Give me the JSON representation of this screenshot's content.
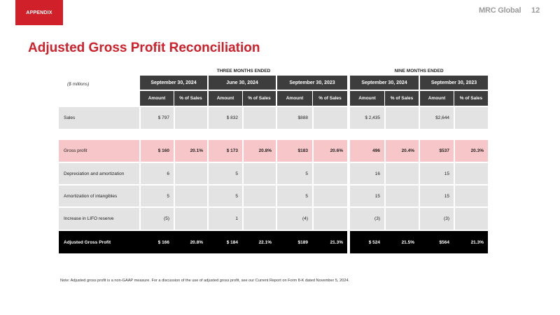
{
  "header": {
    "tag": "APPENDIX",
    "logo": "MRC Global",
    "page": "12"
  },
  "title": "Adjusted Gross Profit Reconciliation",
  "groups": {
    "three_months": "THREE MONTHS ENDED",
    "nine_months": "NINE MONTHS ENDED"
  },
  "units": "($ millions)",
  "periods": [
    "September 30, 2024",
    "June 30, 2024",
    "September 30, 2023",
    "September 30, 2024",
    "September 30, 2023"
  ],
  "subheaders": {
    "amount": "Amount",
    "pct": "% of Sales"
  },
  "rows": [
    {
      "label": "Sales",
      "cells": [
        "$ 797",
        "",
        "$  832",
        "",
        "$888",
        "",
        "$ 2,435",
        "",
        "$2,644",
        ""
      ]
    },
    {
      "label": "Gross profit",
      "cells": [
        "$ 160",
        "20.1%",
        "$ 173",
        "20.8%",
        "$183",
        "20.6%",
        "496",
        "20.4%",
        "$537",
        "20.3%"
      ]
    },
    {
      "label": "Depreciation and amortization",
      "cells": [
        "6",
        "",
        "5",
        "",
        "5",
        "",
        "16",
        "",
        "15",
        ""
      ]
    },
    {
      "label": "Amortization of intangibles",
      "cells": [
        "5",
        "",
        "5",
        "",
        "5",
        "",
        "15",
        "",
        "15",
        ""
      ]
    },
    {
      "label": "Increase in LIFO reserve",
      "cells": [
        "(5)",
        "",
        "1",
        "",
        "(4)",
        "",
        "(3)",
        "",
        "(3)",
        ""
      ]
    },
    {
      "label": "Adjusted Gross Profit",
      "cells": [
        "$ 166",
        "20.8%",
        "$ 184",
        "22.1%",
        "$189",
        "21.3%",
        "$ 524",
        "21.5%",
        "$564",
        "21.3%"
      ]
    }
  ],
  "colors": {
    "accent": "#d0202a",
    "header_bg": "#3d3d3d",
    "row_gray": "#e3e3e3",
    "row_pink": "#f7c6c8",
    "row_black": "#000000"
  },
  "note": "Note: Adjusted gross profit is a non-GAAP measure. For a discussion of the use of adjusted gross profit, see our Current Report on Form 8-K dated November 5, 2024."
}
